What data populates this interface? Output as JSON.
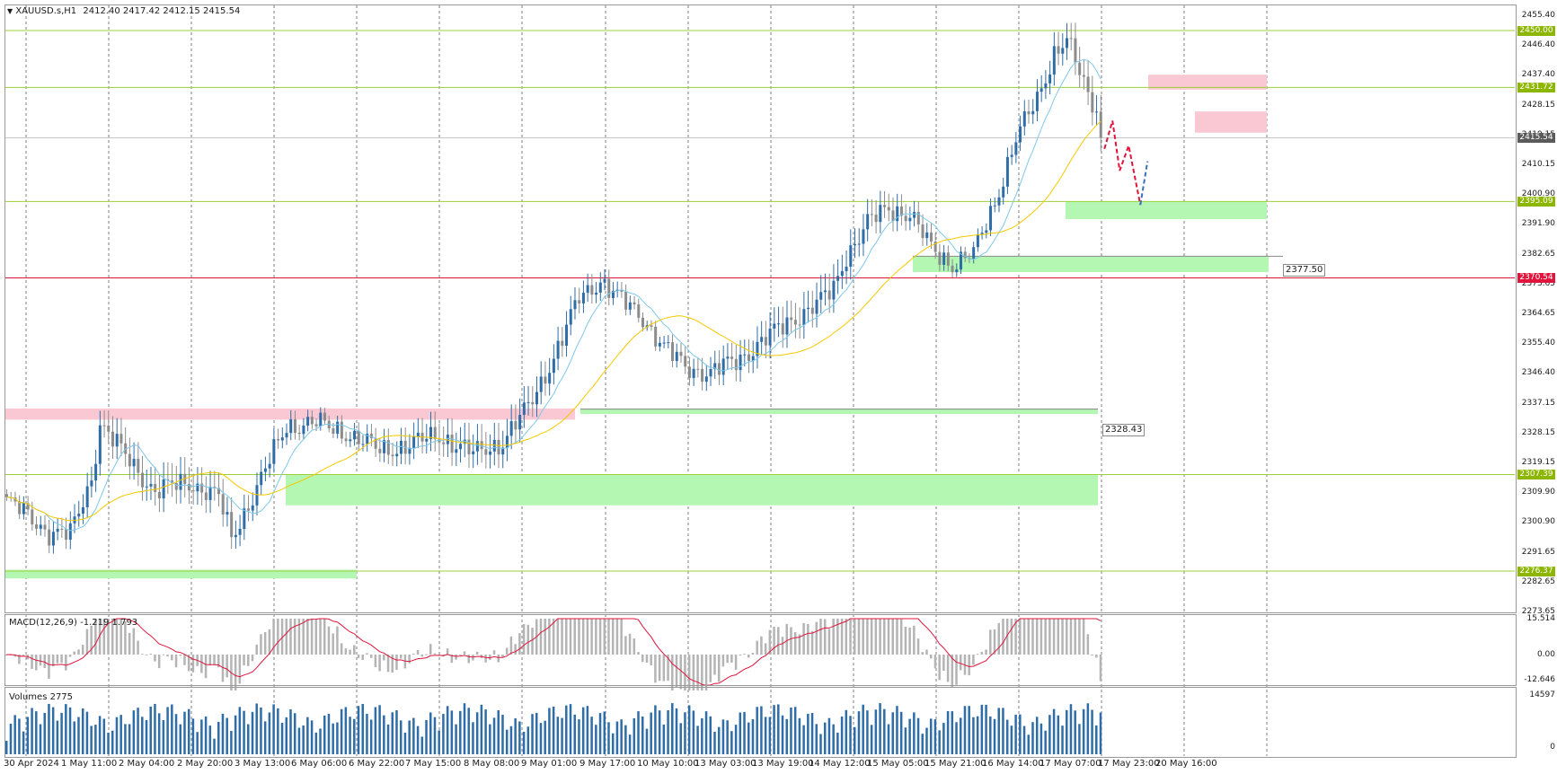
{
  "header": {
    "symbol_title": "XAUUSD.s,H1",
    "ohlc": "2412.40 2417.42 2412.15 2415.54"
  },
  "macd": {
    "title": "MACD(12,26,9) -1.219 1.793",
    "scale": [
      "15.514",
      "0.00",
      "-12.646"
    ]
  },
  "volumes": {
    "title": "Volumes 2775",
    "scale": [
      "14597",
      "0"
    ]
  },
  "price_axis": [
    "2455.40",
    "2446.40",
    "2437.40",
    "2428.15",
    "2419.15",
    "2410.15",
    "2400.90",
    "2391.90",
    "2382.65",
    "2373.65",
    "2364.65",
    "2355.40",
    "2346.40",
    "2337.15",
    "2328.15",
    "2319.15",
    "2309.90",
    "2300.90",
    "2291.65",
    "2282.65",
    "2273.65"
  ],
  "level_tags": [
    {
      "text": "2450.00",
      "color": "#8db600",
      "kind": "green"
    },
    {
      "text": "2431.72",
      "color": "#8db600",
      "kind": "green"
    },
    {
      "text": "2415.54",
      "color": "#5a5a5a",
      "kind": "current"
    },
    {
      "text": "2395.09",
      "color": "#8db600",
      "kind": "green"
    },
    {
      "text": "2370.54",
      "color": "#e0143c",
      "kind": "red"
    },
    {
      "text": "2307.39",
      "color": "#8db600",
      "kind": "green"
    },
    {
      "text": "2276.37",
      "color": "#8db600",
      "kind": "green"
    }
  ],
  "box_labels": [
    "2377.50",
    "2328.43"
  ],
  "time_axis": [
    "30 Apr 2024",
    "1 May 11:00",
    "2 May 04:00",
    "2 May 20:00",
    "3 May 13:00",
    "6 May 06:00",
    "6 May 22:00",
    "7 May 15:00",
    "8 May 08:00",
    "9 May 01:00",
    "9 May 17:00",
    "10 May 10:00",
    "13 May 03:00",
    "13 May 19:00",
    "14 May 12:00",
    "15 May 05:00",
    "15 May 21:00",
    "16 May 14:00",
    "17 May 07:00",
    "17 May 23:00",
    "20 May 16:00"
  ],
  "colors": {
    "bull_candle": "#2f6da8",
    "bear_candle": "#8c8c8c",
    "ma_fast": "#7ec8ea",
    "ma_slow": "#f5c800",
    "support_zone": "#b3f7b3",
    "resistance_zone": "#f9c8d2",
    "level_line_green": "#9cd03a",
    "level_line_red": "#e0143c",
    "macd_hist": "#b4b4b4",
    "macd_signal": "#e0143c",
    "volume_bar": "#2f6da8",
    "forecast_down": "#e0143c",
    "forecast_up": "#3a6fc0"
  }
}
